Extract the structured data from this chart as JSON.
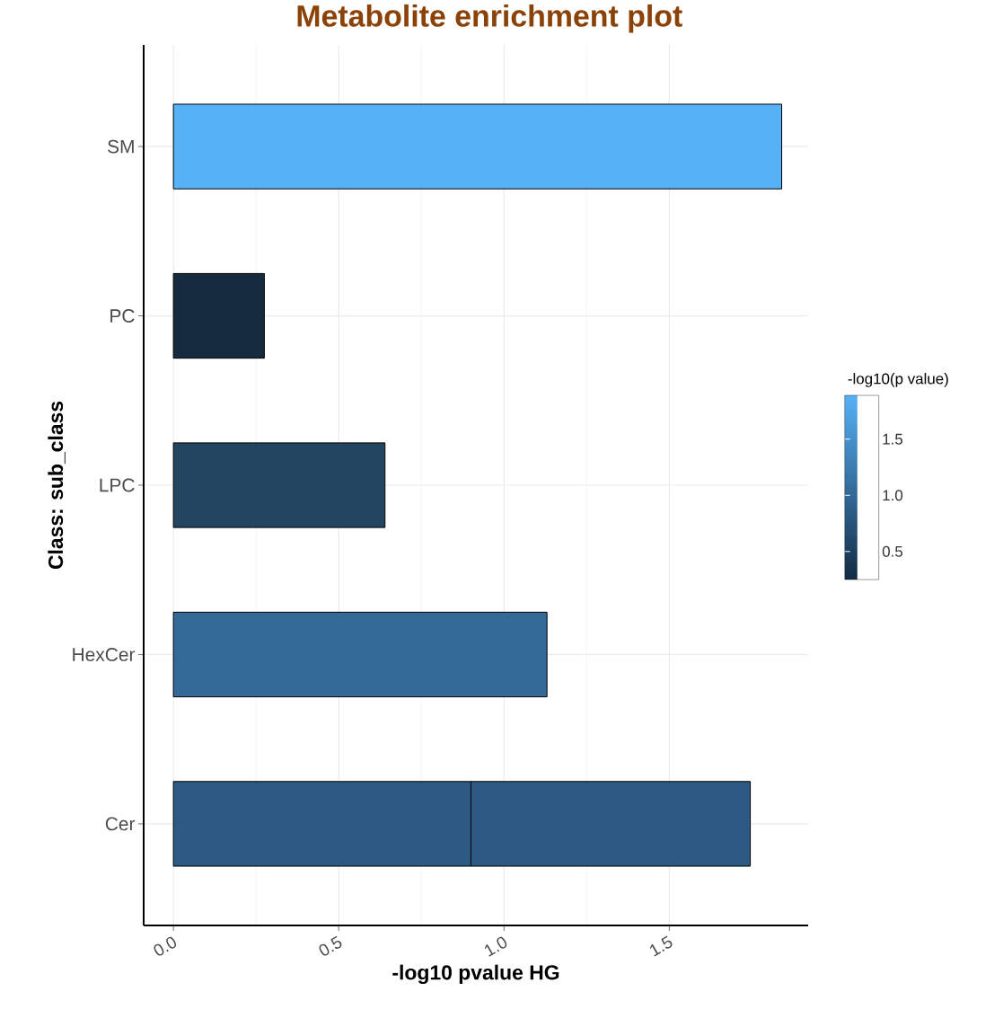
{
  "chart_data": {
    "type": "bar",
    "orientation": "horizontal",
    "stacked": true,
    "title": "Metabolite enrichment plot",
    "xlabel": "-log10 pvalue HG",
    "ylabel": "Class: sub_class",
    "clabel": "-log10(p value)",
    "categories": [
      "SM",
      "PC",
      "LPC",
      "HexCer",
      "Cer"
    ],
    "series": [
      {
        "colors": [
          "#56b1f7",
          "#172b40",
          "#224562",
          "#336a98",
          "#2c5a82"
        ],
        "values": [
          1.84,
          0.275,
          0.64,
          1.13,
          0.9
        ]
      },
      {
        "color": "#2c5a82",
        "values": [
          null,
          null,
          null,
          null,
          0.845
        ]
      }
    ],
    "xlim": [
      -0.09,
      1.92
    ],
    "xticks": [
      {
        "value": 0,
        "label": "0.0"
      },
      0.5,
      {
        "value": 1,
        "label": "1.0"
      },
      1.5
    ],
    "clim": [
      0.25,
      1.89
    ],
    "cticks": [
      0.5,
      {
        "value": 1,
        "label": "1.0"
      },
      1.5
    ],
    "grid": true
  }
}
